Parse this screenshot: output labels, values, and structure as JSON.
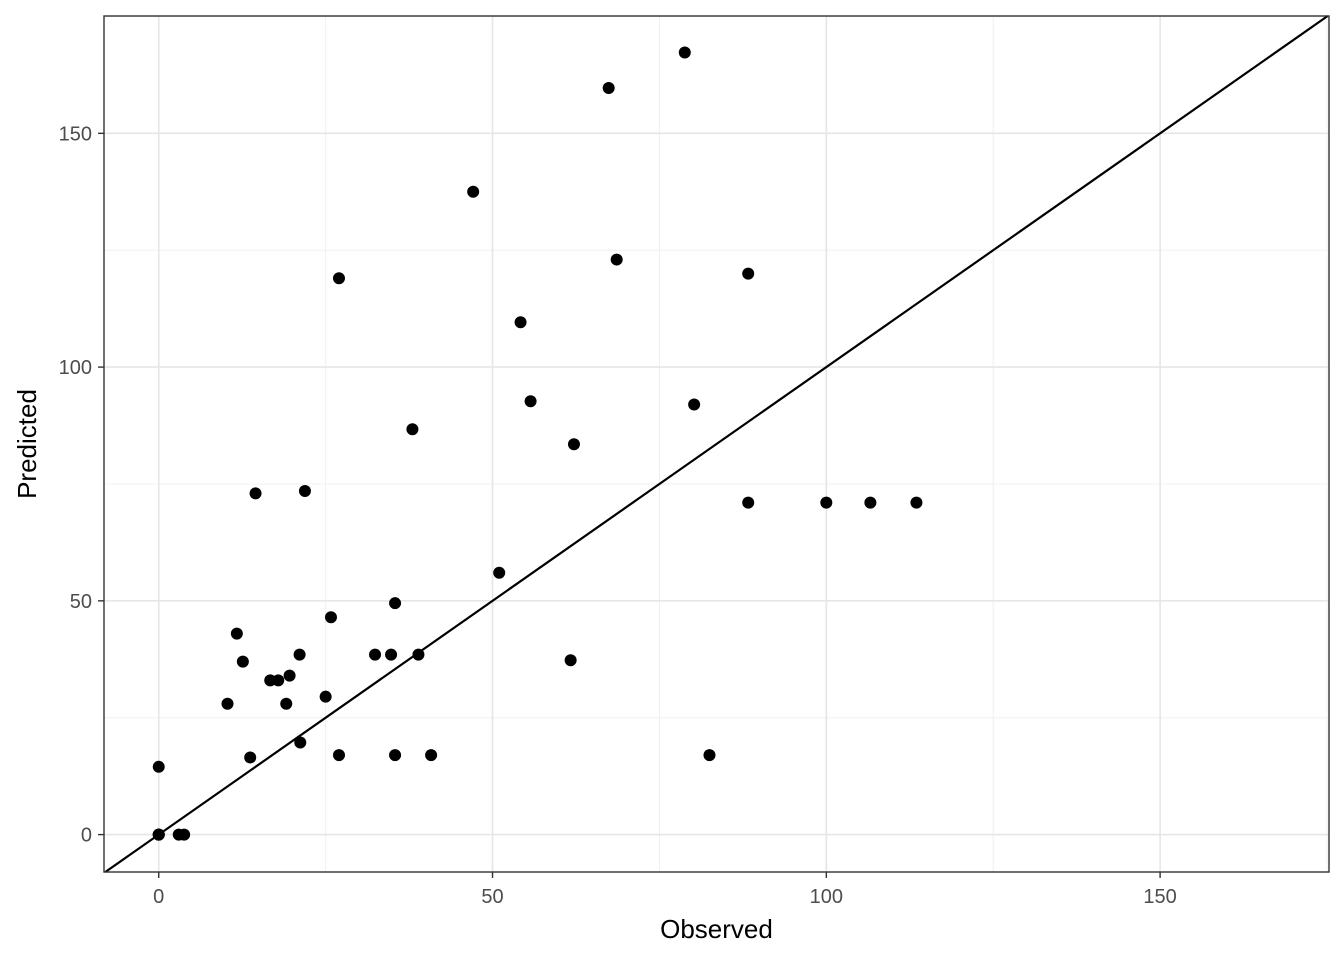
{
  "chart_data": {
    "type": "scatter",
    "title": "",
    "xlabel": "Observed",
    "ylabel": "Predicted",
    "xlim": [
      -8.2,
      175.3
    ],
    "ylim": [
      -8.0,
      175.1
    ],
    "x_ticks": [
      0,
      50,
      100,
      150
    ],
    "y_ticks": [
      0,
      50,
      100,
      150
    ],
    "x_tick_labels": [
      "0",
      "50",
      "100",
      "150"
    ],
    "y_tick_labels": [
      "0",
      "50",
      "100",
      "150"
    ],
    "grid": true,
    "reference_line": {
      "type": "identity",
      "slope": 1,
      "intercept": 0,
      "color": "#000000"
    },
    "point_color": "#000000",
    "points": [
      {
        "x": 0,
        "y": 0
      },
      {
        "x": 0,
        "y": 0
      },
      {
        "x": 0,
        "y": 0
      },
      {
        "x": 0,
        "y": 14.5
      },
      {
        "x": 3,
        "y": 0
      },
      {
        "x": 3.8,
        "y": 0
      },
      {
        "x": 10.3,
        "y": 28
      },
      {
        "x": 11.7,
        "y": 43
      },
      {
        "x": 12.6,
        "y": 37
      },
      {
        "x": 13.7,
        "y": 16.5
      },
      {
        "x": 14.5,
        "y": 73
      },
      {
        "x": 16.7,
        "y": 33
      },
      {
        "x": 17.9,
        "y": 33
      },
      {
        "x": 19.1,
        "y": 28
      },
      {
        "x": 19.6,
        "y": 34
      },
      {
        "x": 21.1,
        "y": 38.5
      },
      {
        "x": 21.2,
        "y": 19.7
      },
      {
        "x": 21.9,
        "y": 73.5
      },
      {
        "x": 25,
        "y": 29.5
      },
      {
        "x": 25.8,
        "y": 46.5
      },
      {
        "x": 27,
        "y": 17
      },
      {
        "x": 27,
        "y": 119
      },
      {
        "x": 32.4,
        "y": 38.5
      },
      {
        "x": 34.8,
        "y": 38.5
      },
      {
        "x": 35.4,
        "y": 17
      },
      {
        "x": 35.4,
        "y": 49.5
      },
      {
        "x": 38,
        "y": 86.7
      },
      {
        "x": 38.9,
        "y": 38.5
      },
      {
        "x": 40.8,
        "y": 17
      },
      {
        "x": 47.1,
        "y": 137.5
      },
      {
        "x": 51,
        "y": 56
      },
      {
        "x": 54.2,
        "y": 109.6
      },
      {
        "x": 55.7,
        "y": 92.7
      },
      {
        "x": 61.7,
        "y": 37.3
      },
      {
        "x": 62.2,
        "y": 83.5
      },
      {
        "x": 67.4,
        "y": 159.7
      },
      {
        "x": 68.6,
        "y": 123
      },
      {
        "x": 78.8,
        "y": 167.3
      },
      {
        "x": 80.2,
        "y": 92
      },
      {
        "x": 82.5,
        "y": 17
      },
      {
        "x": 88.3,
        "y": 71
      },
      {
        "x": 88.3,
        "y": 120
      },
      {
        "x": 100,
        "y": 71
      },
      {
        "x": 106.6,
        "y": 71
      },
      {
        "x": 113.5,
        "y": 71
      }
    ]
  }
}
